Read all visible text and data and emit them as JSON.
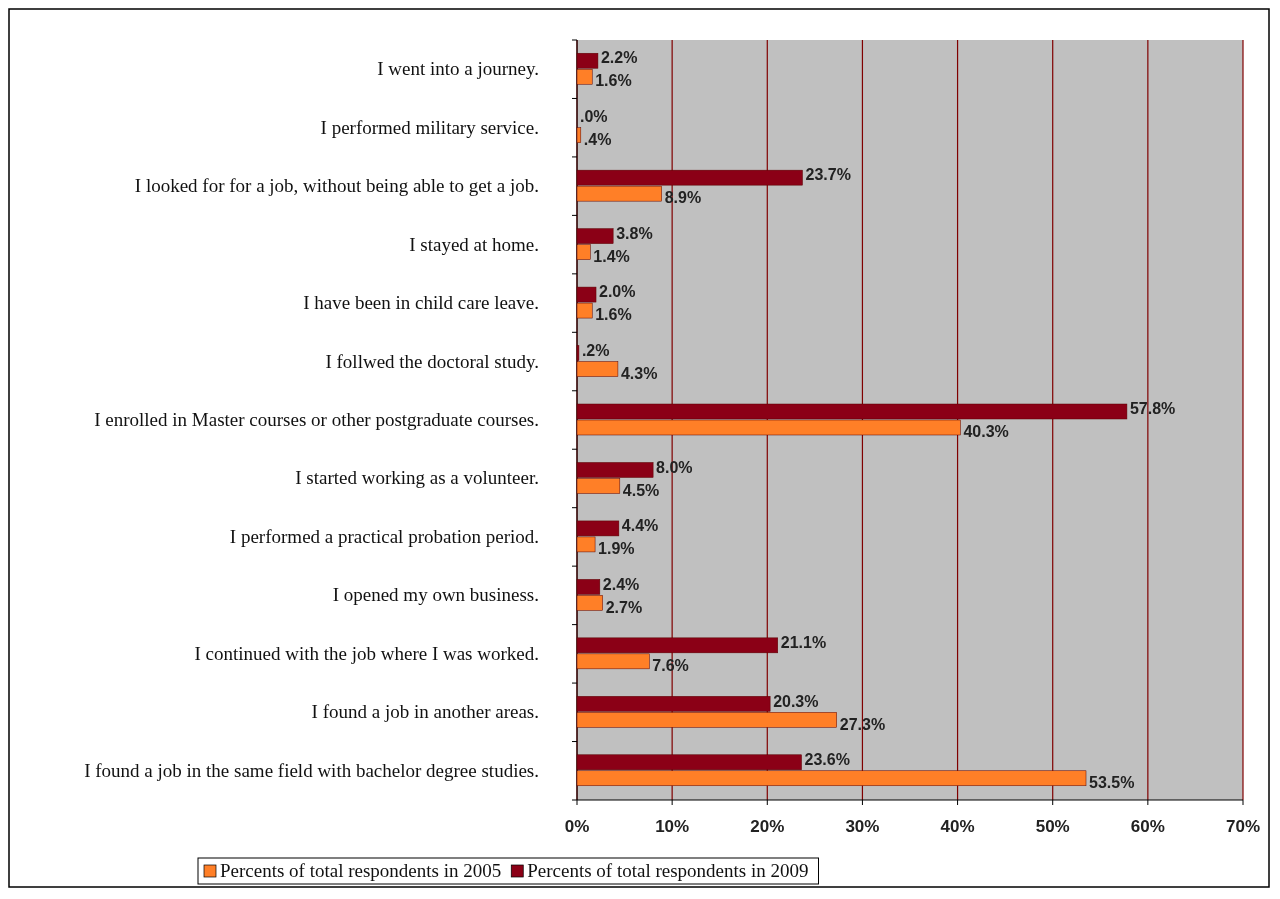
{
  "chart_data": {
    "type": "bar",
    "orientation": "horizontal",
    "categories": [
      "I went into a journey.",
      "I performed military service.",
      "I looked for for a job, without being able to get a job.",
      "I stayed at home.",
      "I have been in child care leave.",
      "I follwed the doctoral study.",
      "I enrolled in Master courses or other postgraduate courses.",
      "I started working as a volunteer.",
      "I performed a practical probation period.",
      "I opened my own business.",
      "I continued with the job where I was worked.",
      "I found a job in another areas.",
      "I found a job in the same field with bachelor degree studies."
    ],
    "series": [
      {
        "name": "Percents of total respondents in 2005",
        "color": "#ff7f27",
        "values": [
          1.6,
          0.4,
          8.9,
          1.4,
          1.6,
          4.3,
          40.3,
          4.5,
          1.9,
          2.7,
          7.6,
          27.3,
          53.5
        ],
        "value_labels": [
          "1.6%",
          ".4%",
          "8.9%",
          "1.4%",
          "1.6%",
          "4.3%",
          "40.3%",
          "4.5%",
          "1.9%",
          "2.7%",
          "7.6%",
          "27.3%",
          "53.5%"
        ]
      },
      {
        "name": "Percents of total respondents in 2009",
        "color": "#8b0016",
        "values": [
          2.2,
          0,
          23.7,
          3.8,
          2.0,
          0.2,
          57.8,
          8.0,
          4.4,
          2.4,
          21.1,
          20.3,
          23.6
        ],
        "value_labels": [
          "2.2%",
          ".0%",
          "23.7%",
          "3.8%",
          "2.0%",
          ".2%",
          "57.8%",
          "8.0%",
          "4.4%",
          "2.4%",
          "21.1%",
          "20.3%",
          "23.6%"
        ]
      }
    ],
    "xlim": [
      0,
      70
    ],
    "xticks": [
      {
        "value": 0,
        "label": "0%"
      },
      {
        "value": 10,
        "label": "10%"
      },
      {
        "value": 20,
        "label": "20%"
      },
      {
        "value": 30,
        "label": "30%"
      },
      {
        "value": 40,
        "label": "40%"
      },
      {
        "value": 50,
        "label": "50%"
      },
      {
        "value": 60,
        "label": "60%"
      },
      {
        "value": 70,
        "label": "70%"
      }
    ],
    "grid": "x",
    "legend": "bottom"
  }
}
